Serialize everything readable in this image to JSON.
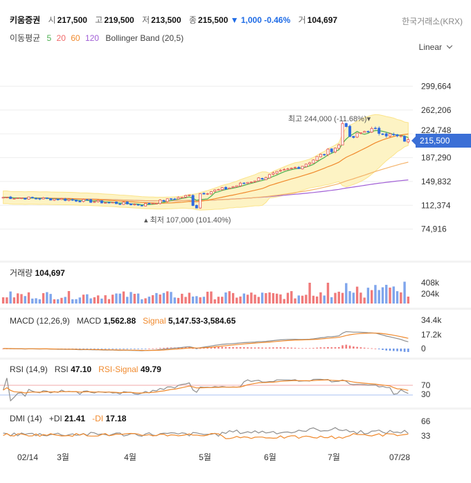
{
  "header": {
    "name": "키움증권",
    "open_label": "시",
    "open": "217,500",
    "high_label": "고",
    "high": "219,500",
    "low_label": "저",
    "low": "213,500",
    "close_label": "종",
    "close": "215,500",
    "change": "1,000",
    "change_pct": "-0.46%",
    "volume_label": "거",
    "volume": "104,697",
    "exchange": "한국거래소(KRX)"
  },
  "indicators": {
    "ma_label": "이동평균",
    "ma5": "5",
    "ma20": "20",
    "ma60": "60",
    "ma120": "120",
    "bb_label": "Bollinger Band (20,5)"
  },
  "scale_mode": "Linear",
  "colors": {
    "up": "#f07a7a",
    "down": "#4a7fe0",
    "ma5": "#4caf50",
    "ma20": "#f0892c",
    "ma60": "#f4b36a",
    "ma120": "#a15fd6",
    "band": "#fdf3c4",
    "band_line": "#fbe48b",
    "accent": "#3b6fd6",
    "signal": "#f0892c"
  },
  "price_panel": {
    "y_ticks": [
      "299,664",
      "262,206",
      "224,748",
      "187,290",
      "149,832",
      "112,374",
      "74,916"
    ],
    "last_price": "215,500",
    "max_anno": "최고 244,000 (-11.68%)",
    "min_anno": "최저 107,000 (101.40%)"
  },
  "volume_panel": {
    "label": "거래량",
    "value": "104,697",
    "ticks": [
      "408k",
      "204k"
    ]
  },
  "macd_panel": {
    "label": "MACD (12,26,9)",
    "macd_label": "MACD",
    "macd_value": "1,562.88",
    "signal_label": "Signal",
    "signal_value": "5,147.53",
    "hist_value": "-3,584.65",
    "ticks": [
      "34.4k",
      "17.2k",
      "0"
    ]
  },
  "rsi_panel": {
    "label": "RSI (14,9)",
    "rsi_label": "RSI",
    "rsi_value": "47.10",
    "signal_label": "RSI-Signal",
    "signal_value": "49.79",
    "ticks": [
      "70",
      "30"
    ]
  },
  "dmi_panel": {
    "label": "DMI (14)",
    "pdi_label": "+DI",
    "pdi_value": "21.41",
    "mdi_label": "-DI",
    "mdi_value": "17.18",
    "ticks": [
      "66",
      "33"
    ]
  },
  "x_axis": {
    "labels": [
      "02/14",
      "3월",
      "4월",
      "5월",
      "6월",
      "7월",
      "07/28"
    ]
  },
  "chart_data": {
    "type": "candlestick",
    "x_start": "02/14",
    "x_end": "07/28",
    "y_ticks": [
      299664,
      262206,
      224748,
      187290,
      149832,
      112374,
      74916
    ],
    "close_anchors": [
      {
        "x": "02/14",
        "y": 125000
      },
      {
        "x": "3월",
        "y": 122000
      },
      {
        "x": "4월",
        "y": 113000
      },
      {
        "x": "5월",
        "y": 140000
      },
      {
        "x": "6월",
        "y": 175000
      },
      {
        "x": "7월",
        "y": 232000
      },
      {
        "x": "07/28",
        "y": 215500
      }
    ],
    "max": 244000,
    "min": 107000,
    "last": 215500,
    "volume_last": 104697,
    "macd": 1562.88,
    "signal": 5147.53,
    "histogram": -3584.65,
    "rsi": 47.1,
    "rsi_signal": 49.79,
    "plus_di": 21.41,
    "minus_di": 17.18
  }
}
